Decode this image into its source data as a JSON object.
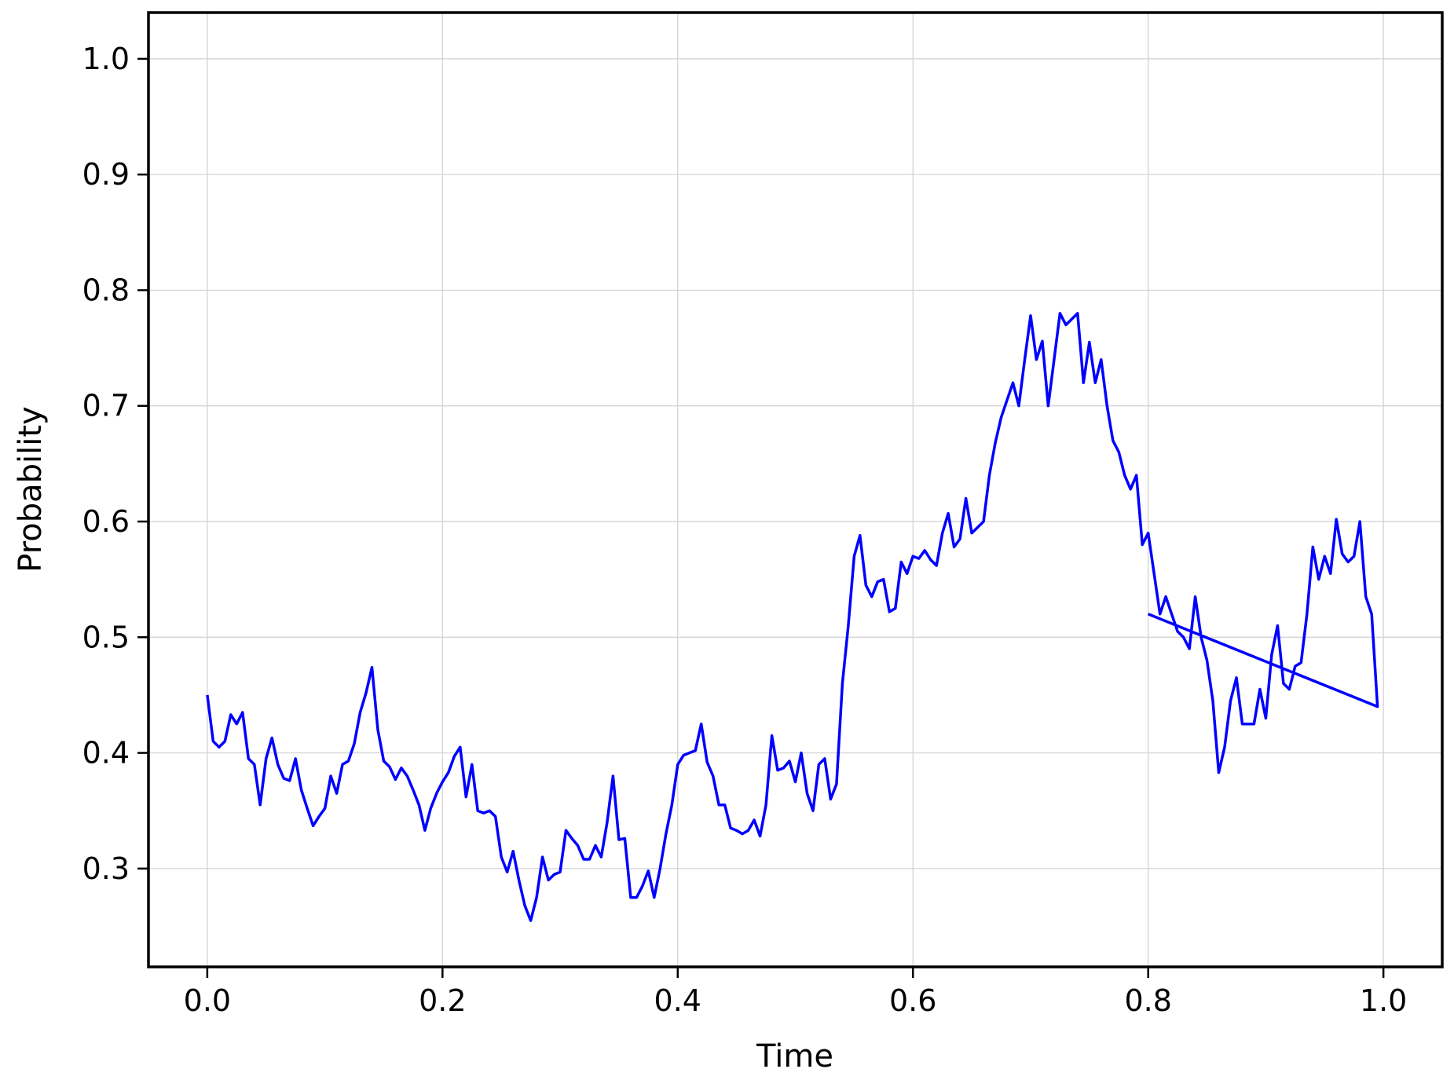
{
  "chart_data": {
    "type": "line",
    "title": "",
    "xlabel": "Time",
    "ylabel": "Probability",
    "xlim": [
      -0.05,
      1.05
    ],
    "ylim": [
      0.215,
      1.04
    ],
    "xticks": [
      0.0,
      0.2,
      0.4,
      0.6,
      0.8,
      1.0
    ],
    "xtick_labels": [
      "0.0",
      "0.2",
      "0.4",
      "0.6",
      "0.8",
      "1.0"
    ],
    "yticks": [
      0.3,
      0.4,
      0.5,
      0.6,
      0.7,
      0.8,
      0.9,
      1.0
    ],
    "ytick_labels": [
      "0.3",
      "0.4",
      "0.5",
      "0.6",
      "0.7",
      "0.8",
      "0.9",
      "1.0"
    ],
    "grid": true,
    "legend": "none",
    "series": [
      {
        "color": "#0000ff",
        "stroke_width": 3.5,
        "points": [
          [
            0.0,
            0.45
          ],
          [
            0.005,
            0.41
          ],
          [
            0.01,
            0.405
          ],
          [
            0.015,
            0.41
          ],
          [
            0.02,
            0.433
          ],
          [
            0.025,
            0.425
          ],
          [
            0.03,
            0.435
          ],
          [
            0.035,
            0.395
          ],
          [
            0.04,
            0.39
          ],
          [
            0.045,
            0.355
          ],
          [
            0.05,
            0.395
          ],
          [
            0.055,
            0.413
          ],
          [
            0.06,
            0.39
          ],
          [
            0.065,
            0.378
          ],
          [
            0.07,
            0.376
          ],
          [
            0.075,
            0.395
          ],
          [
            0.08,
            0.368
          ],
          [
            0.085,
            0.352
          ],
          [
            0.09,
            0.337
          ],
          [
            0.095,
            0.345
          ],
          [
            0.1,
            0.352
          ],
          [
            0.105,
            0.38
          ],
          [
            0.11,
            0.365
          ],
          [
            0.115,
            0.39
          ],
          [
            0.12,
            0.393
          ],
          [
            0.125,
            0.408
          ],
          [
            0.13,
            0.435
          ],
          [
            0.135,
            0.452
          ],
          [
            0.14,
            0.474
          ],
          [
            0.145,
            0.42
          ],
          [
            0.15,
            0.393
          ],
          [
            0.155,
            0.388
          ],
          [
            0.16,
            0.377
          ],
          [
            0.165,
            0.387
          ],
          [
            0.17,
            0.38
          ],
          [
            0.175,
            0.368
          ],
          [
            0.18,
            0.355
          ],
          [
            0.185,
            0.333
          ],
          [
            0.19,
            0.352
          ],
          [
            0.195,
            0.365
          ],
          [
            0.2,
            0.375
          ],
          [
            0.205,
            0.383
          ],
          [
            0.21,
            0.397
          ],
          [
            0.215,
            0.405
          ],
          [
            0.22,
            0.362
          ],
          [
            0.225,
            0.39
          ],
          [
            0.23,
            0.35
          ],
          [
            0.235,
            0.348
          ],
          [
            0.24,
            0.35
          ],
          [
            0.245,
            0.345
          ],
          [
            0.25,
            0.31
          ],
          [
            0.255,
            0.297
          ],
          [
            0.26,
            0.315
          ],
          [
            0.265,
            0.29
          ],
          [
            0.27,
            0.268
          ],
          [
            0.275,
            0.255
          ],
          [
            0.28,
            0.275
          ],
          [
            0.285,
            0.31
          ],
          [
            0.29,
            0.29
          ],
          [
            0.295,
            0.295
          ],
          [
            0.3,
            0.297
          ],
          [
            0.305,
            0.333
          ],
          [
            0.31,
            0.326
          ],
          [
            0.315,
            0.32
          ],
          [
            0.32,
            0.308
          ],
          [
            0.325,
            0.308
          ],
          [
            0.33,
            0.32
          ],
          [
            0.335,
            0.31
          ],
          [
            0.34,
            0.34
          ],
          [
            0.345,
            0.38
          ],
          [
            0.35,
            0.325
          ],
          [
            0.355,
            0.326
          ],
          [
            0.36,
            0.275
          ],
          [
            0.365,
            0.275
          ],
          [
            0.37,
            0.285
          ],
          [
            0.375,
            0.298
          ],
          [
            0.38,
            0.275
          ],
          [
            0.385,
            0.3
          ],
          [
            0.39,
            0.33
          ],
          [
            0.395,
            0.355
          ],
          [
            0.4,
            0.39
          ],
          [
            0.405,
            0.398
          ],
          [
            0.41,
            0.4
          ],
          [
            0.415,
            0.402
          ],
          [
            0.42,
            0.425
          ],
          [
            0.425,
            0.392
          ],
          [
            0.43,
            0.38
          ],
          [
            0.435,
            0.355
          ],
          [
            0.44,
            0.355
          ],
          [
            0.445,
            0.335
          ],
          [
            0.45,
            0.333
          ],
          [
            0.455,
            0.33
          ],
          [
            0.46,
            0.333
          ],
          [
            0.465,
            0.342
          ],
          [
            0.47,
            0.328
          ],
          [
            0.475,
            0.355
          ],
          [
            0.48,
            0.415
          ],
          [
            0.485,
            0.385
          ],
          [
            0.49,
            0.387
          ],
          [
            0.495,
            0.393
          ],
          [
            0.5,
            0.375
          ],
          [
            0.505,
            0.4
          ],
          [
            0.51,
            0.365
          ],
          [
            0.515,
            0.35
          ],
          [
            0.52,
            0.39
          ],
          [
            0.525,
            0.395
          ],
          [
            0.53,
            0.36
          ],
          [
            0.535,
            0.373
          ],
          [
            0.54,
            0.46
          ],
          [
            0.545,
            0.51
          ],
          [
            0.55,
            0.57
          ],
          [
            0.555,
            0.588
          ],
          [
            0.56,
            0.545
          ],
          [
            0.565,
            0.535
          ],
          [
            0.57,
            0.548
          ],
          [
            0.575,
            0.55
          ],
          [
            0.58,
            0.522
          ],
          [
            0.585,
            0.525
          ],
          [
            0.59,
            0.565
          ],
          [
            0.595,
            0.555
          ],
          [
            0.6,
            0.57
          ],
          [
            0.605,
            0.568
          ],
          [
            0.61,
            0.575
          ],
          [
            0.615,
            0.567
          ],
          [
            0.62,
            0.562
          ],
          [
            0.625,
            0.59
          ],
          [
            0.63,
            0.607
          ],
          [
            0.635,
            0.578
          ],
          [
            0.64,
            0.585
          ],
          [
            0.645,
            0.62
          ],
          [
            0.65,
            0.59
          ],
          [
            0.655,
            0.595
          ],
          [
            0.66,
            0.6
          ],
          [
            0.665,
            0.64
          ],
          [
            0.67,
            0.668
          ],
          [
            0.675,
            0.69
          ],
          [
            0.68,
            0.705
          ],
          [
            0.685,
            0.72
          ],
          [
            0.69,
            0.7
          ],
          [
            0.695,
            0.74
          ],
          [
            0.7,
            0.778
          ],
          [
            0.705,
            0.74
          ],
          [
            0.71,
            0.756
          ],
          [
            0.715,
            0.7
          ],
          [
            0.72,
            0.74
          ],
          [
            0.725,
            0.78
          ],
          [
            0.73,
            0.77
          ],
          [
            0.735,
            0.775
          ],
          [
            0.74,
            0.78
          ],
          [
            0.745,
            0.72
          ],
          [
            0.75,
            0.755
          ],
          [
            0.755,
            0.72
          ],
          [
            0.76,
            0.74
          ],
          [
            0.765,
            0.7
          ],
          [
            0.77,
            0.67
          ],
          [
            0.775,
            0.66
          ],
          [
            0.78,
            0.64
          ],
          [
            0.785,
            0.628
          ],
          [
            0.79,
            0.64
          ],
          [
            0.795,
            0.58
          ],
          [
            0.8,
            0.59
          ],
          [
            0.805,
            0.555
          ],
          [
            0.81,
            0.52
          ],
          [
            0.815,
            0.535
          ],
          [
            0.82,
            0.52
          ],
          [
            0.825,
            0.505
          ],
          [
            0.83,
            0.5
          ],
          [
            0.835,
            0.49
          ],
          [
            0.84,
            0.535
          ],
          [
            0.845,
            0.5
          ],
          [
            0.85,
            0.48
          ],
          [
            0.855,
            0.445
          ],
          [
            0.86,
            0.383
          ],
          [
            0.865,
            0.405
          ],
          [
            0.87,
            0.445
          ],
          [
            0.875,
            0.465
          ],
          [
            0.88,
            0.425
          ],
          [
            0.885,
            0.425
          ],
          [
            0.89,
            0.425
          ],
          [
            0.895,
            0.455
          ],
          [
            0.9,
            0.43
          ],
          [
            0.905,
            0.485
          ],
          [
            0.91,
            0.51
          ],
          [
            0.915,
            0.46
          ],
          [
            0.92,
            0.455
          ],
          [
            0.925,
            0.475
          ],
          [
            0.93,
            0.478
          ],
          [
            0.935,
            0.52
          ],
          [
            0.94,
            0.578
          ],
          [
            0.945,
            0.55
          ],
          [
            0.95,
            0.57
          ],
          [
            0.955,
            0.555
          ],
          [
            0.96,
            0.602
          ],
          [
            0.965,
            0.572
          ],
          [
            0.97,
            0.565
          ],
          [
            0.975,
            0.57
          ],
          [
            0.98,
            0.6
          ],
          [
            0.985,
            0.535
          ],
          [
            0.99,
            0.52
          ],
          [
            0.995,
            0.44
          ],
          [
            0.8,
            0.52
          ]
        ]
      }
    ]
  }
}
